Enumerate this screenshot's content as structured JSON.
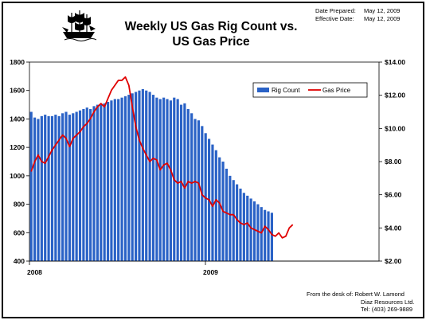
{
  "header": {
    "title_line1": "Weekly US Gas Rig Count vs.",
    "title_line2": "US Gas Price",
    "date_prepared_label": "Date Prepared:",
    "date_prepared_value": "May 12, 2009",
    "effective_date_label": "Effective Date:",
    "effective_date_value": "May 12, 2009"
  },
  "footer": {
    "line1": "From the desk of:  Robert W. Lamond",
    "line2": "Diaz Resources Ltd.",
    "line3": "Tel:  (403) 269-9889"
  },
  "chart_data": {
    "type": "bar+line",
    "title": "Weekly US Gas Rig Count vs. US Gas Price",
    "x_tick_labels": [
      "2008",
      "2009"
    ],
    "y_left": {
      "range": [
        400,
        1800
      ],
      "ticks": [
        "400",
        "600",
        "800",
        "1000",
        "1200",
        "1400",
        "1600",
        "1800"
      ]
    },
    "y_right": {
      "range": [
        2,
        14
      ],
      "ticks": [
        "$2.00",
        "$4.00",
        "$6.00",
        "$8.00",
        "$10.00",
        "$12.00",
        "$14.00"
      ]
    },
    "legend": {
      "position": "top-right",
      "bar_label": "Rig Count",
      "line_label": "Gas Price"
    },
    "colors": {
      "bars": "#2a62c6",
      "line": "#e00000"
    },
    "bar_week_start": 0,
    "line_week_start": 0,
    "rig_count": [
      1450,
      1410,
      1400,
      1420,
      1430,
      1420,
      1420,
      1430,
      1420,
      1440,
      1450,
      1430,
      1440,
      1450,
      1460,
      1470,
      1480,
      1470,
      1490,
      1500,
      1500,
      1510,
      1520,
      1530,
      1540,
      1540,
      1550,
      1560,
      1570,
      1580,
      1590,
      1600,
      1610,
      1600,
      1590,
      1570,
      1550,
      1540,
      1550,
      1540,
      1530,
      1550,
      1540,
      1500,
      1510,
      1470,
      1440,
      1400,
      1390,
      1350,
      1300,
      1260,
      1220,
      1180,
      1130,
      1100,
      1050,
      1000,
      970,
      940,
      910,
      880,
      860,
      840,
      820,
      800,
      780,
      760,
      750,
      740
    ],
    "gas_price": [
      7.4,
      8.0,
      8.4,
      8.0,
      7.9,
      8.3,
      8.7,
      9.0,
      9.3,
      9.6,
      9.4,
      8.9,
      9.4,
      9.6,
      9.8,
      10.1,
      10.3,
      10.6,
      11.0,
      11.3,
      11.5,
      11.3,
      11.8,
      12.3,
      12.6,
      12.9,
      12.9,
      13.1,
      12.6,
      11.3,
      10.1,
      9.3,
      8.8,
      8.4,
      8.0,
      8.2,
      8.1,
      7.5,
      7.8,
      7.9,
      7.5,
      6.9,
      6.7,
      6.8,
      6.4,
      6.8,
      6.7,
      6.8,
      6.7,
      6.0,
      5.8,
      5.7,
      5.3,
      5.7,
      5.5,
      5.0,
      4.9,
      4.8,
      4.8,
      4.5,
      4.3,
      4.2,
      4.3,
      4.0,
      3.9,
      3.8,
      3.7,
      4.1,
      3.9,
      3.6,
      3.5,
      3.7,
      3.4,
      3.5,
      4.0,
      4.2
    ]
  }
}
